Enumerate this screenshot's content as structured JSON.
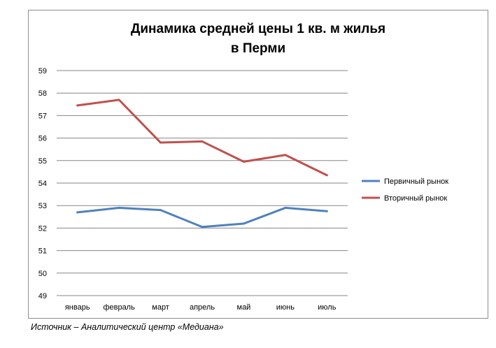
{
  "chart_data": {
    "type": "line",
    "title_line1": "Динамика средней цены 1 кв. м жилья",
    "title_line2": "в Перми",
    "categories": [
      "январь",
      "февраль",
      "март",
      "апрель",
      "май",
      "июнь",
      "июль"
    ],
    "ylim": [
      49,
      59
    ],
    "yticks": [
      49,
      50,
      51,
      52,
      53,
      54,
      55,
      56,
      57,
      58,
      59
    ],
    "grid": true,
    "legend_position": "right",
    "series": [
      {
        "name": "Первичный рынок",
        "color": "#4f81bd",
        "values": [
          52.7,
          52.9,
          52.8,
          52.05,
          52.2,
          52.9,
          52.75
        ]
      },
      {
        "name": "Вторичный рынок",
        "color": "#c0504d",
        "values": [
          57.45,
          57.7,
          55.8,
          55.85,
          54.95,
          55.25,
          54.35
        ]
      }
    ]
  },
  "source": "Источник – Аналитический центр «Медиана»"
}
